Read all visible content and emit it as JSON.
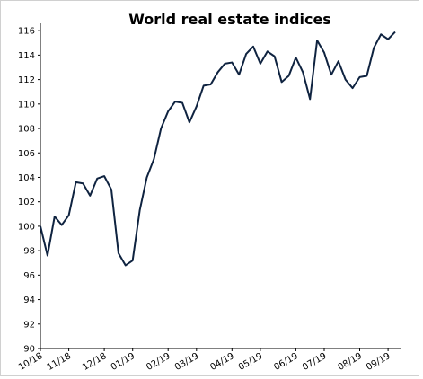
{
  "chart_data": {
    "type": "line",
    "title": "World real estate indices",
    "categories": [
      "10/18",
      null,
      null,
      null,
      "11/18",
      null,
      null,
      null,
      null,
      "12/18",
      null,
      null,
      null,
      "01/19",
      null,
      null,
      null,
      null,
      "02/19",
      null,
      null,
      null,
      "03/19",
      null,
      null,
      null,
      null,
      "04/19",
      null,
      null,
      null,
      "05/19",
      null,
      null,
      null,
      null,
      "06/19",
      null,
      null,
      null,
      "07/19",
      null,
      null,
      null,
      null,
      "08/19",
      null,
      null,
      null,
      "09/19",
      null
    ],
    "series": [
      {
        "name": "World real estate",
        "color": "#0f2340",
        "values": [
          100.0,
          97.6,
          100.8,
          100.1,
          100.9,
          103.6,
          103.5,
          102.5,
          103.9,
          104.1,
          103.0,
          97.8,
          96.8,
          97.2,
          101.3,
          104.0,
          105.5,
          108.0,
          109.4,
          110.2,
          110.1,
          108.5,
          109.8,
          111.5,
          111.6,
          112.6,
          113.3,
          113.4,
          112.4,
          114.1,
          114.7,
          113.3,
          114.3,
          113.9,
          111.8,
          112.3,
          113.8,
          112.6,
          110.4,
          115.2,
          114.2,
          112.4,
          113.5,
          112.0,
          111.3,
          112.2,
          112.3,
          114.6,
          115.7,
          115.3,
          115.9
        ]
      }
    ],
    "ylim": [
      90,
      116.6
    ],
    "yticks": [
      90,
      92,
      94,
      96,
      98,
      100,
      102,
      104,
      106,
      108,
      110,
      112,
      114,
      116
    ]
  }
}
